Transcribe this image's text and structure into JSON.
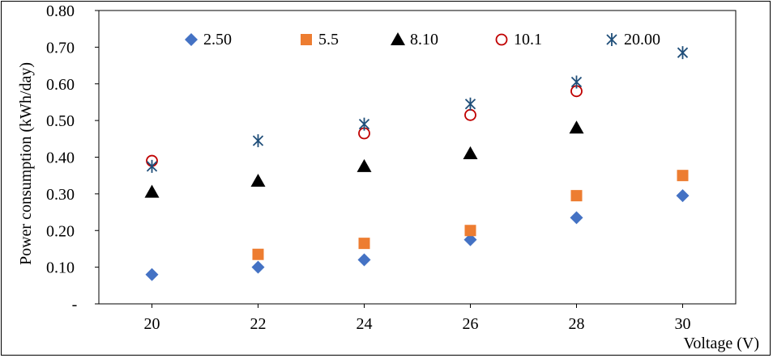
{
  "chart_data": {
    "type": "scatter",
    "title": "",
    "xlabel": "Voltage (V)",
    "ylabel": "Power consumption (kWh/day)",
    "x": [
      20,
      22,
      24,
      26,
      28,
      30
    ],
    "xlim": [
      19,
      31
    ],
    "ylim": [
      0,
      0.8
    ],
    "x_ticks": [
      "20",
      "22",
      "24",
      "26",
      "28",
      "30"
    ],
    "y_ticks": [
      {
        "value": 0.0,
        "label": "-"
      },
      {
        "value": 0.1,
        "label": "0.10"
      },
      {
        "value": 0.2,
        "label": "0.20"
      },
      {
        "value": 0.3,
        "label": "0.30"
      },
      {
        "value": 0.4,
        "label": "0.40"
      },
      {
        "value": 0.5,
        "label": "0.50"
      },
      {
        "value": 0.6,
        "label": "0.60"
      },
      {
        "value": 0.7,
        "label": "0.70"
      },
      {
        "value": 0.8,
        "label": "0.80"
      }
    ],
    "grid": false,
    "legend_position": "top",
    "series": [
      {
        "name": "2.50",
        "marker": "diamond",
        "color": "#4472C4",
        "values": [
          0.08,
          0.1,
          0.12,
          0.175,
          0.235,
          0.295
        ]
      },
      {
        "name": "5.5",
        "marker": "square",
        "color": "#ED7D31",
        "values": [
          null,
          0.135,
          0.165,
          0.2,
          0.295,
          0.35
        ]
      },
      {
        "name": "8.10",
        "marker": "triangle",
        "color": "#000000",
        "values": [
          0.305,
          0.335,
          0.375,
          0.41,
          0.48,
          null
        ]
      },
      {
        "name": "10.1",
        "marker": "circle-open",
        "color": "#C00000",
        "values": [
          0.39,
          null,
          0.465,
          0.515,
          0.58,
          null
        ]
      },
      {
        "name": "20.00",
        "marker": "star",
        "color": "#1F4E79",
        "values": [
          0.375,
          0.445,
          0.49,
          0.545,
          0.605,
          0.685
        ]
      }
    ]
  }
}
